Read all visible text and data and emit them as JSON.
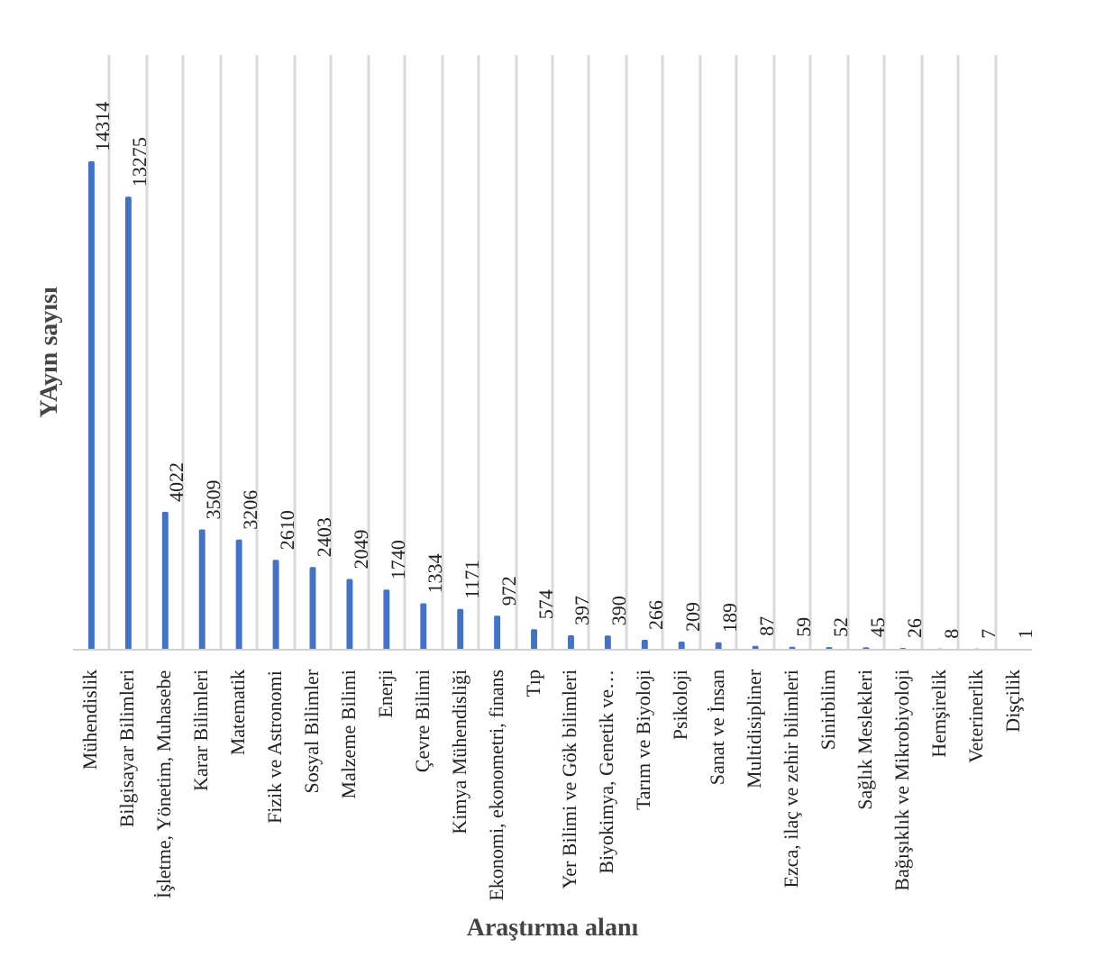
{
  "chart_data": {
    "type": "bar",
    "ylabel": "YAyın sayısı",
    "xlabel": "Araştırma alanı",
    "categories": [
      "Mühendislik",
      "Bilgisayar Bilimleri",
      "İşletme, Yönetim, Muhasebe",
      "Karar Bilimleri",
      "Matematik",
      "Fizik ve Astronomi",
      "Sosyal Bilimler",
      "Malzeme Bilimi",
      "Enerji",
      "Çevre Bilimi",
      "Kimya Mühendisliği",
      "Ekonomi, ekonometri, finans",
      "Tıp",
      "Yer Bilimi ve Gök bilimleri",
      "Biyokimya, Genetik ve…",
      "Tarım ve Biyoloji",
      "Psikoloji",
      "Sanat ve İnsan",
      "Multidisipliner",
      "Ezca, ilaç ve zehir bilimleri",
      "Sinirbilim",
      "Sağlık Meslekleri",
      "Bağışıklık ve Mikrobiyoloji",
      "Hemşirelik",
      "Veterinerlik",
      "Dişçilik"
    ],
    "values": [
      14314,
      13275,
      4022,
      3509,
      3206,
      2610,
      2403,
      2049,
      1740,
      1334,
      1171,
      972,
      574,
      397,
      390,
      266,
      209,
      189,
      87,
      59,
      52,
      45,
      26,
      8,
      7,
      1
    ],
    "color": "#4472c4",
    "data_labels": true,
    "grid": "x",
    "tick_labels": "x"
  }
}
